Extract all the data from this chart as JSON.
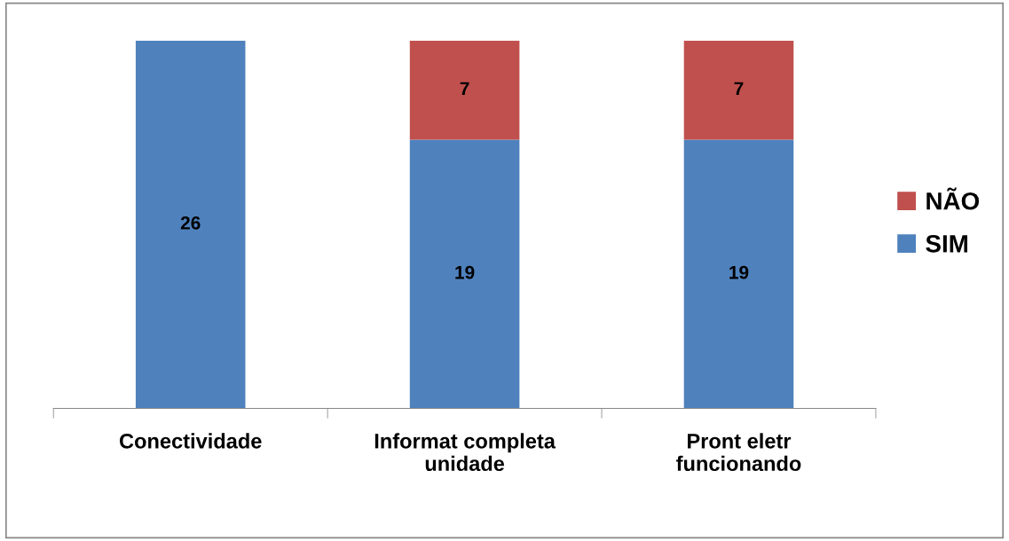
{
  "chart_data": {
    "type": "bar",
    "stacked": true,
    "data_labels": true,
    "legend": "right",
    "grid": false,
    "categories": [
      "Conectividade",
      "Informat completa\nunidade",
      "Pront eletr\nfuncionando"
    ],
    "series": [
      {
        "name": "SIM",
        "color": "#4f81bd",
        "values": [
          26,
          19,
          19
        ]
      },
      {
        "name": "NÃO",
        "color": "#c0504d",
        "values": [
          null,
          7,
          7
        ]
      }
    ]
  }
}
